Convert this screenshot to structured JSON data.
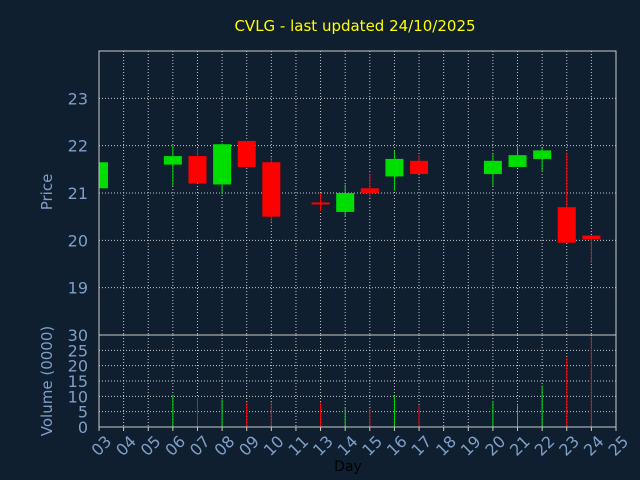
{
  "chart_data": {
    "title": "CVLG - last updated 24/10/2025",
    "xlabel": "Day",
    "days": [
      "03",
      "04",
      "05",
      "06",
      "07",
      "08",
      "09",
      "10",
      "11",
      "13",
      "14",
      "15",
      "16",
      "17",
      "18",
      "19",
      "20",
      "21",
      "22",
      "23",
      "24",
      "25"
    ],
    "price_panel": {
      "type": "candlestick",
      "ylabel": "Price",
      "ylim": [
        18.0,
        24.0
      ],
      "yticks": [
        19,
        20,
        21,
        22,
        23
      ],
      "grid": true,
      "candles": [
        {
          "day": "03",
          "open": 21.1,
          "high": 21.65,
          "low": 21.1,
          "close": 21.65
        },
        {
          "day": "06",
          "open": 21.6,
          "high": 22.0,
          "low": 21.15,
          "close": 21.78
        },
        {
          "day": "07",
          "open": 21.78,
          "high": 21.95,
          "low": 21.2,
          "close": 21.2
        },
        {
          "day": "08",
          "open": 21.18,
          "high": 22.05,
          "low": 20.98,
          "close": 22.03
        },
        {
          "day": "09",
          "open": 22.1,
          "high": 22.1,
          "low": 21.55,
          "close": 21.55
        },
        {
          "day": "10",
          "open": 21.65,
          "high": 21.75,
          "low": 20.38,
          "close": 20.5
        },
        {
          "day": "13",
          "open": 20.8,
          "high": 21.0,
          "low": 20.62,
          "close": 20.8
        },
        {
          "day": "14",
          "open": 20.6,
          "high": 21.18,
          "low": 20.5,
          "close": 21.0
        },
        {
          "day": "15",
          "open": 21.1,
          "high": 21.4,
          "low": 20.9,
          "close": 21.0
        },
        {
          "day": "16",
          "open": 21.35,
          "high": 21.9,
          "low": 21.05,
          "close": 21.72
        },
        {
          "day": "17",
          "open": 21.68,
          "high": 21.8,
          "low": 21.4,
          "close": 21.4
        },
        {
          "day": "20",
          "open": 21.4,
          "high": 21.82,
          "low": 21.15,
          "close": 21.68
        },
        {
          "day": "21",
          "open": 21.55,
          "high": 22.0,
          "low": 21.55,
          "close": 21.8
        },
        {
          "day": "22",
          "open": 21.72,
          "high": 21.95,
          "low": 21.45,
          "close": 21.9
        },
        {
          "day": "23",
          "open": 20.7,
          "high": 21.85,
          "low": 19.95,
          "close": 19.95
        },
        {
          "day": "24",
          "open": 20.1,
          "high": 20.1,
          "low": 19.52,
          "close": 20.02
        }
      ]
    },
    "volume_panel": {
      "type": "bar",
      "ylabel": "Volume (0000)",
      "ylim": [
        0,
        30
      ],
      "yticks": [
        0,
        5,
        10,
        15,
        20,
        25,
        30
      ],
      "grid": true,
      "bars": [
        {
          "day": "03",
          "value": 0,
          "direction": "up"
        },
        {
          "day": "06",
          "value": 10.5,
          "direction": "up"
        },
        {
          "day": "07",
          "value": 9.5,
          "direction": "down"
        },
        {
          "day": "08",
          "value": 9.0,
          "direction": "up"
        },
        {
          "day": "09",
          "value": 8.0,
          "direction": "down"
        },
        {
          "day": "10",
          "value": 8.0,
          "direction": "down"
        },
        {
          "day": "13",
          "value": 8.0,
          "direction": "down"
        },
        {
          "day": "14",
          "value": 6.5,
          "direction": "up"
        },
        {
          "day": "15",
          "value": 6.0,
          "direction": "down"
        },
        {
          "day": "16",
          "value": 10.0,
          "direction": "up"
        },
        {
          "day": "17",
          "value": 7.0,
          "direction": "down"
        },
        {
          "day": "20",
          "value": 8.5,
          "direction": "up"
        },
        {
          "day": "21",
          "value": 7.0,
          "direction": "up"
        },
        {
          "day": "22",
          "value": 13.5,
          "direction": "up"
        },
        {
          "day": "23",
          "value": 22.5,
          "direction": "down"
        },
        {
          "day": "24",
          "value": 29.5,
          "direction": "down"
        }
      ]
    },
    "colors": {
      "background": "#0f1f30",
      "up": "#00dd00",
      "down": "#ff0000",
      "doji": "#ff0000",
      "grid": "#c8c8c8",
      "axis_text": "#7f9fc7",
      "title": "#ffff00"
    }
  }
}
